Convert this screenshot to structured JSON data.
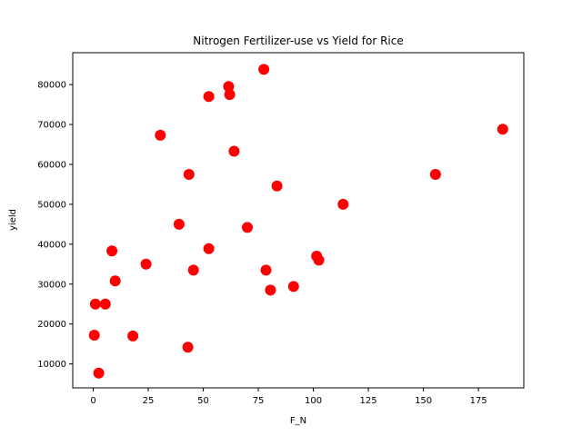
{
  "chart_data": {
    "type": "scatter",
    "title": "Nitrogen Fertilizer-use vs Yield for Rice",
    "xlabel": "F_N",
    "ylabel": "yield",
    "xlim": [
      -9.3,
      195.6
    ],
    "ylim": [
      4000,
      88000
    ],
    "xticks": [
      0,
      25,
      50,
      75,
      100,
      125,
      150,
      175
    ],
    "yticks": [
      10000,
      20000,
      30000,
      40000,
      50000,
      60000,
      70000,
      80000
    ],
    "grid": false,
    "marker_color": "#ff0000",
    "x": [
      0.5,
      1,
      2.5,
      5.5,
      8.5,
      10,
      18,
      24,
      30.5,
      39,
      43,
      43.5,
      45.5,
      52.5,
      52.5,
      61.5,
      62,
      64,
      70,
      77.5,
      78.5,
      80.5,
      83.5,
      91,
      101.5,
      102.5,
      113.5,
      155.5,
      186
    ],
    "y": [
      17200,
      25000,
      7700,
      25000,
      38300,
      30800,
      17000,
      35000,
      67300,
      45000,
      14200,
      57500,
      33500,
      77000,
      38900,
      79500,
      77500,
      63300,
      44200,
      83800,
      33500,
      28500,
      54600,
      29400,
      37000,
      36000,
      50000,
      57500,
      68800
    ]
  }
}
